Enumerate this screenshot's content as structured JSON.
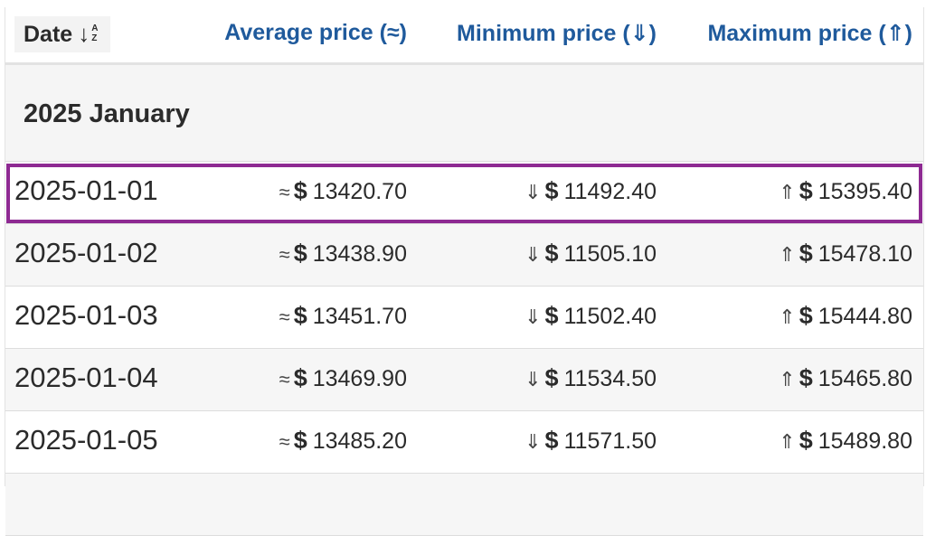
{
  "header": {
    "date_label": "Date",
    "sort_icon_name": "sort-alpha-down-icon",
    "sort_letters_top": "A",
    "sort_letters_bottom": "Z",
    "avg_label": "Average price (≈)",
    "min_label": "Minimum price (⇓)",
    "max_label": "Maximum price (⇑)"
  },
  "month": {
    "title": "2025 January"
  },
  "symbols": {
    "avg": "≈",
    "min": "⇓",
    "max": "⇑",
    "currency": "$"
  },
  "rows": [
    {
      "date": "2025-01-01",
      "avg": "13420.70",
      "min": "11492.40",
      "max": "15395.40"
    },
    {
      "date": "2025-01-02",
      "avg": "13438.90",
      "min": "11505.10",
      "max": "15478.10"
    },
    {
      "date": "2025-01-03",
      "avg": "13451.70",
      "min": "11502.40",
      "max": "15444.80"
    },
    {
      "date": "2025-01-04",
      "avg": "13469.90",
      "min": "11534.50",
      "max": "15465.80"
    },
    {
      "date": "2025-01-05",
      "avg": "13485.20",
      "min": "11571.50",
      "max": "15489.80"
    }
  ],
  "colors": {
    "header_text": "#1f5a9c",
    "highlight_border": "#8e2a92"
  }
}
